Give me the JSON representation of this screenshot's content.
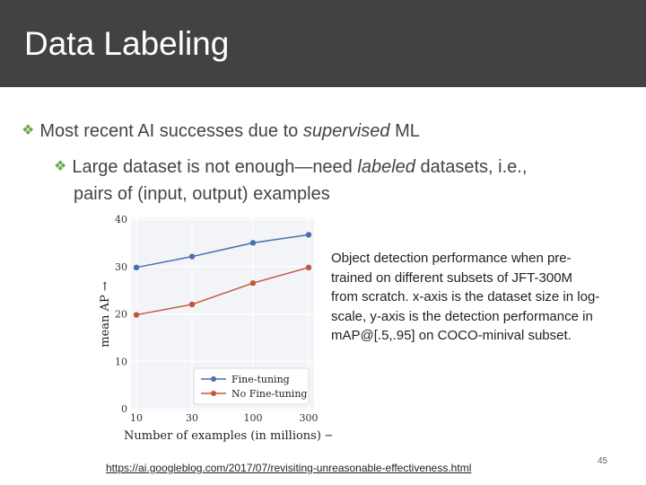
{
  "slide": {
    "title": "Data Labeling",
    "bullet1": {
      "pre": "Most recent AI successes due to ",
      "em": "supervised",
      "post": " ML"
    },
    "bullet2": {
      "pre": "Large dataset is not enough—need ",
      "em": "labeled",
      "post": " datasets, i.e., ",
      "cont": "pairs of (input, output) examples"
    },
    "caption": "Object detection performance when pre-trained on different subsets of JFT-300M from scratch. x-axis is the dataset size in log-scale, y-axis is the detection performance in mAP@[.5,.95] on COCO-minival subset.",
    "link": "https://ai.googleblog.com/2017/07/revisiting-unreasonable-effectiveness.html",
    "page_number": "45",
    "bullet_icon": "diamond-cluster-icon",
    "accent_color": "#6aa84f"
  },
  "chart_data": {
    "type": "line",
    "x": [
      10,
      30,
      100,
      300
    ],
    "x_tick_labels": [
      "10",
      "30",
      "100",
      "300"
    ],
    "xscale": "log",
    "xlabel": "Number of examples (in millions) →",
    "ylabel": "mean AP →",
    "ylim": [
      0,
      40
    ],
    "y_ticks": [
      0,
      10,
      20,
      30,
      40
    ],
    "grid": true,
    "legend_position": "bottom-right",
    "series": [
      {
        "name": "Fine-tuning",
        "color": "#4a6fb0",
        "values": [
          29.8,
          32.1,
          35.0,
          36.7
        ]
      },
      {
        "name": "No Fine-tuning",
        "color": "#c0593a",
        "values": [
          19.8,
          22.0,
          26.5,
          29.8
        ]
      }
    ]
  }
}
